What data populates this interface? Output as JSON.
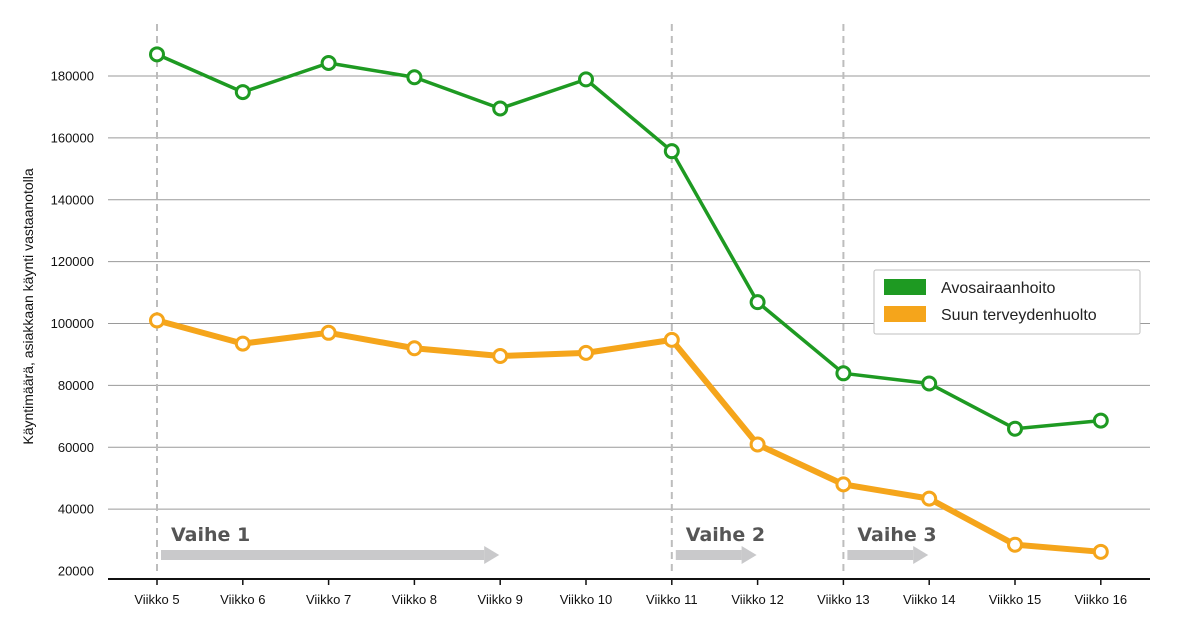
{
  "chart_data": {
    "type": "line",
    "title": "",
    "xlabel": "",
    "ylabel": "Käyntimäärä, asiakkaan käynti vastaanotolla",
    "categories": [
      "Viikko 5",
      "Viikko 6",
      "Viikko 7",
      "Viikko 8",
      "Viikko 9",
      "Viikko 10",
      "Viikko 11",
      "Viikko 12",
      "Viikko 13",
      "Viikko 14",
      "Viikko 15",
      "Viikko 16"
    ],
    "ylim": [
      20000,
      190000
    ],
    "yticks": [
      20000,
      40000,
      60000,
      80000,
      100000,
      120000,
      140000,
      160000,
      180000
    ],
    "ytick_labels": [
      "20000",
      "40000",
      "60000",
      "80000",
      "100000",
      "120000",
      "140000",
      "160000",
      "180000"
    ],
    "grid": true,
    "legend_position": "right",
    "series": [
      {
        "name": "Avosairaanhoito",
        "color": "#1e9a22",
        "values": [
          187000,
          174800,
          184200,
          179600,
          169500,
          178900,
          155700,
          106900,
          83900,
          80600,
          66000,
          68600
        ]
      },
      {
        "name": "Suun terveydenhuolto",
        "color": "#f5a51b",
        "values": [
          101000,
          93500,
          97000,
          92000,
          89500,
          90500,
          94700,
          60900,
          48000,
          43400,
          28500,
          26200
        ]
      }
    ],
    "phase_markers": [
      "Viikko 5",
      "Viikko 11",
      "Viikko 13"
    ],
    "phases": [
      {
        "label": "Vaihe 1",
        "start": "Viikko 5",
        "end": "Viikko 9"
      },
      {
        "label": "Vaihe 2",
        "start": "Viikko 11",
        "end": "Viikko 12"
      },
      {
        "label": "Vaihe 3",
        "start": "Viikko 13",
        "end": "Viikko 14"
      }
    ]
  }
}
